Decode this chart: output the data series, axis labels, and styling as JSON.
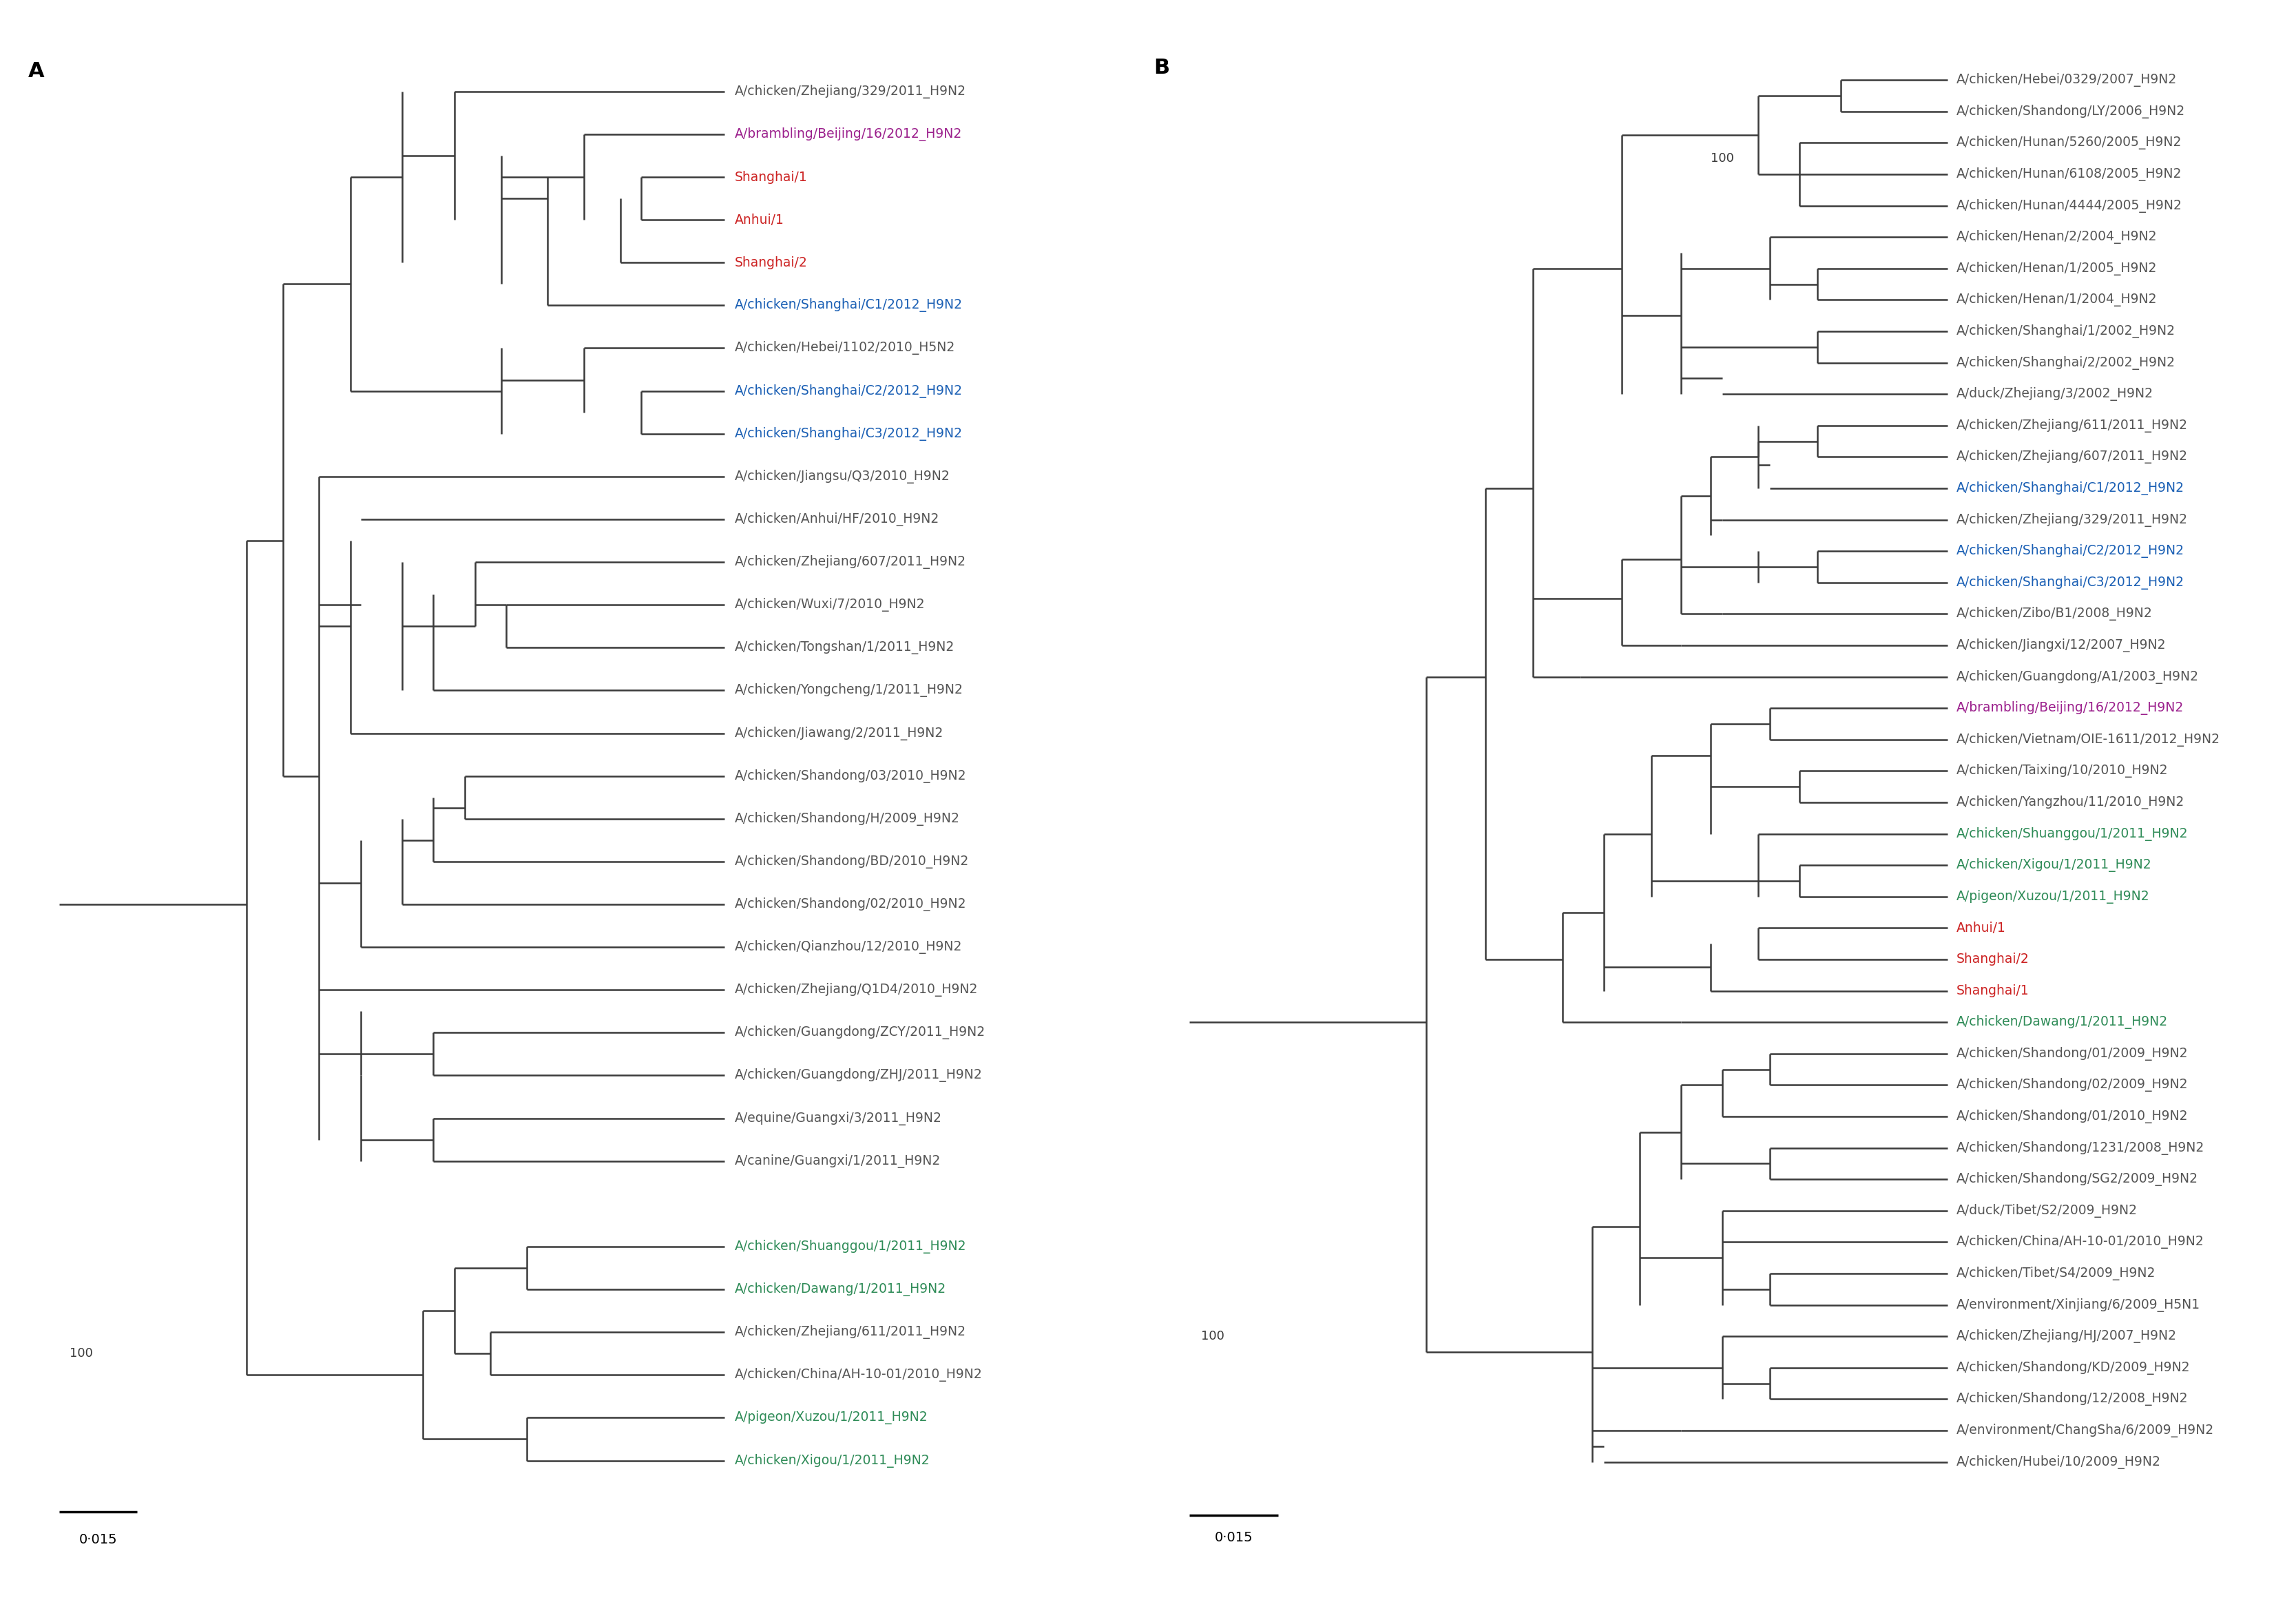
{
  "panel_A_label": "A",
  "panel_B_label": "B",
  "scale_bar_label": "0·015",
  "background_color": "#ffffff",
  "line_color": "#3a3a3a",
  "line_width": 1.8,
  "font_size": 13.5,
  "bootstrap_font_size": 13,
  "panel_A_leaves": [
    {
      "name": "A/chicken/Zhejiang/329/2011_H9N2",
      "y": 1,
      "color": "#555555"
    },
    {
      "name": "A/brambling/Beijing/16/2012_H9N2",
      "y": 2,
      "color": "#9b1f8c"
    },
    {
      "name": "Shanghai/1",
      "y": 3,
      "color": "#cc2222"
    },
    {
      "name": "Anhui/1",
      "y": 4,
      "color": "#cc2222"
    },
    {
      "name": "Shanghai/2",
      "y": 5,
      "color": "#cc2222"
    },
    {
      "name": "A/chicken/Shanghai/C1/2012_H9N2",
      "y": 6,
      "color": "#1a5fb4"
    },
    {
      "name": "A/chicken/Hebei/1102/2010_H5N2",
      "y": 7,
      "color": "#555555"
    },
    {
      "name": "A/chicken/Shanghai/C2/2012_H9N2",
      "y": 8,
      "color": "#1a5fb4"
    },
    {
      "name": "A/chicken/Shanghai/C3/2012_H9N2",
      "y": 9,
      "color": "#1a5fb4"
    },
    {
      "name": "A/chicken/Jiangsu/Q3/2010_H9N2",
      "y": 10,
      "color": "#555555"
    },
    {
      "name": "A/chicken/Anhui/HF/2010_H9N2",
      "y": 11,
      "color": "#555555"
    },
    {
      "name": "A/chicken/Zhejiang/607/2011_H9N2",
      "y": 12,
      "color": "#555555"
    },
    {
      "name": "A/chicken/Wuxi/7/2010_H9N2",
      "y": 13,
      "color": "#555555"
    },
    {
      "name": "A/chicken/Tongshan/1/2011_H9N2",
      "y": 14,
      "color": "#555555"
    },
    {
      "name": "A/chicken/Yongcheng/1/2011_H9N2",
      "y": 15,
      "color": "#555555"
    },
    {
      "name": "A/chicken/Jiawang/2/2011_H9N2",
      "y": 16,
      "color": "#555555"
    },
    {
      "name": "A/chicken/Shandong/03/2010_H9N2",
      "y": 17,
      "color": "#555555"
    },
    {
      "name": "A/chicken/Shandong/H/2009_H9N2",
      "y": 18,
      "color": "#555555"
    },
    {
      "name": "A/chicken/Shandong/BD/2010_H9N2",
      "y": 19,
      "color": "#555555"
    },
    {
      "name": "A/chicken/Shandong/02/2010_H9N2",
      "y": 20,
      "color": "#555555"
    },
    {
      "name": "A/chicken/Qianzhou/12/2010_H9N2",
      "y": 21,
      "color": "#555555"
    },
    {
      "name": "A/chicken/Zhejiang/Q1D4/2010_H9N2",
      "y": 22,
      "color": "#555555"
    },
    {
      "name": "A/chicken/Guangdong/ZCY/2011_H9N2",
      "y": 23,
      "color": "#555555"
    },
    {
      "name": "A/chicken/Guangdong/ZHJ/2011_H9N2",
      "y": 24,
      "color": "#555555"
    },
    {
      "name": "A/equine/Guangxi/3/2011_H9N2",
      "y": 25,
      "color": "#555555"
    },
    {
      "name": "A/canine/Guangxi/1/2011_H9N2",
      "y": 26,
      "color": "#555555"
    },
    {
      "name": "A/chicken/Shuanggou/1/2011_H9N2",
      "y": 28,
      "color": "#2e8b57"
    },
    {
      "name": "A/chicken/Dawang/1/2011_H9N2",
      "y": 29,
      "color": "#2e8b57"
    },
    {
      "name": "A/chicken/Zhejiang/611/2011_H9N2",
      "y": 30,
      "color": "#555555"
    },
    {
      "name": "A/chicken/China/AH-10-01/2010_H9N2",
      "y": 31,
      "color": "#555555"
    },
    {
      "name": "A/pigeon/Xuzou/1/2011_H9N2",
      "y": 32,
      "color": "#2e8b57"
    },
    {
      "name": "A/chicken/Xigou/1/2011_H9N2",
      "y": 33,
      "color": "#2e8b57"
    }
  ],
  "panel_B_leaves": [
    {
      "name": "A/chicken/Hebei/0329/2007_H9N2",
      "y": 1,
      "color": "#555555"
    },
    {
      "name": "A/chicken/Shandong/LY/2006_H9N2",
      "y": 2,
      "color": "#555555"
    },
    {
      "name": "A/chicken/Hunan/5260/2005_H9N2",
      "y": 3,
      "color": "#555555"
    },
    {
      "name": "A/chicken/Hunan/6108/2005_H9N2",
      "y": 4,
      "color": "#555555"
    },
    {
      "name": "A/chicken/Hunan/4444/2005_H9N2",
      "y": 5,
      "color": "#555555"
    },
    {
      "name": "A/chicken/Henan/2/2004_H9N2",
      "y": 6,
      "color": "#555555"
    },
    {
      "name": "A/chicken/Henan/1/2005_H9N2",
      "y": 7,
      "color": "#555555"
    },
    {
      "name": "A/chicken/Henan/1/2004_H9N2",
      "y": 8,
      "color": "#555555"
    },
    {
      "name": "A/chicken/Shanghai/1/2002_H9N2",
      "y": 9,
      "color": "#555555"
    },
    {
      "name": "A/chicken/Shanghai/2/2002_H9N2",
      "y": 10,
      "color": "#555555"
    },
    {
      "name": "A/duck/Zhejiang/3/2002_H9N2",
      "y": 11,
      "color": "#555555"
    },
    {
      "name": "A/chicken/Zhejiang/611/2011_H9N2",
      "y": 12,
      "color": "#555555"
    },
    {
      "name": "A/chicken/Zhejiang/607/2011_H9N2",
      "y": 13,
      "color": "#555555"
    },
    {
      "name": "A/chicken/Shanghai/C1/2012_H9N2",
      "y": 14,
      "color": "#1a5fb4"
    },
    {
      "name": "A/chicken/Zhejiang/329/2011_H9N2",
      "y": 15,
      "color": "#555555"
    },
    {
      "name": "A/chicken/Shanghai/C2/2012_H9N2",
      "y": 16,
      "color": "#1a5fb4"
    },
    {
      "name": "A/chicken/Shanghai/C3/2012_H9N2",
      "y": 17,
      "color": "#1a5fb4"
    },
    {
      "name": "A/chicken/Zibo/B1/2008_H9N2",
      "y": 18,
      "color": "#555555"
    },
    {
      "name": "A/chicken/Jiangxi/12/2007_H9N2",
      "y": 19,
      "color": "#555555"
    },
    {
      "name": "A/chicken/Guangdong/A1/2003_H9N2",
      "y": 20,
      "color": "#555555"
    },
    {
      "name": "A/brambling/Beijing/16/2012_H9N2",
      "y": 21,
      "color": "#9b1f8c"
    },
    {
      "name": "A/chicken/Vietnam/OIE-1611/2012_H9N2",
      "y": 22,
      "color": "#555555"
    },
    {
      "name": "A/chicken/Taixing/10/2010_H9N2",
      "y": 23,
      "color": "#555555"
    },
    {
      "name": "A/chicken/Yangzhou/11/2010_H9N2",
      "y": 24,
      "color": "#555555"
    },
    {
      "name": "A/chicken/Shuanggou/1/2011_H9N2",
      "y": 25,
      "color": "#2e8b57"
    },
    {
      "name": "A/chicken/Xigou/1/2011_H9N2",
      "y": 26,
      "color": "#2e8b57"
    },
    {
      "name": "A/pigeon/Xuzou/1/2011_H9N2",
      "y": 27,
      "color": "#2e8b57"
    },
    {
      "name": "Anhui/1",
      "y": 28,
      "color": "#cc2222"
    },
    {
      "name": "Shanghai/2",
      "y": 29,
      "color": "#cc2222"
    },
    {
      "name": "Shanghai/1",
      "y": 30,
      "color": "#cc2222"
    },
    {
      "name": "A/chicken/Dawang/1/2011_H9N2",
      "y": 31,
      "color": "#2e8b57"
    },
    {
      "name": "A/chicken/Shandong/01/2009_H9N2",
      "y": 32,
      "color": "#555555"
    },
    {
      "name": "A/chicken/Shandong/02/2009_H9N2",
      "y": 33,
      "color": "#555555"
    },
    {
      "name": "A/chicken/Shandong/01/2010_H9N2",
      "y": 34,
      "color": "#555555"
    },
    {
      "name": "A/chicken/Shandong/1231/2008_H9N2",
      "y": 35,
      "color": "#555555"
    },
    {
      "name": "A/chicken/Shandong/SG2/2009_H9N2",
      "y": 36,
      "color": "#555555"
    },
    {
      "name": "A/duck/Tibet/S2/2009_H9N2",
      "y": 37,
      "color": "#555555"
    },
    {
      "name": "A/chicken/China/AH-10-01/2010_H9N2",
      "y": 38,
      "color": "#555555"
    },
    {
      "name": "A/chicken/Tibet/S4/2009_H9N2",
      "y": 39,
      "color": "#555555"
    },
    {
      "name": "A/environment/Xinjiang/6/2009_H5N1",
      "y": 40,
      "color": "#555555"
    },
    {
      "name": "A/chicken/Zhejiang/HJ/2007_H9N2",
      "y": 41,
      "color": "#555555"
    },
    {
      "name": "A/chicken/Shandong/KD/2009_H9N2",
      "y": 42,
      "color": "#555555"
    },
    {
      "name": "A/chicken/Shandong/12/2008_H9N2",
      "y": 43,
      "color": "#555555"
    },
    {
      "name": "A/environment/ChangSha/6/2009_H9N2",
      "y": 44,
      "color": "#555555"
    },
    {
      "name": "A/chicken/Hubei/10/2009_H9N2",
      "y": 45,
      "color": "#555555"
    }
  ]
}
